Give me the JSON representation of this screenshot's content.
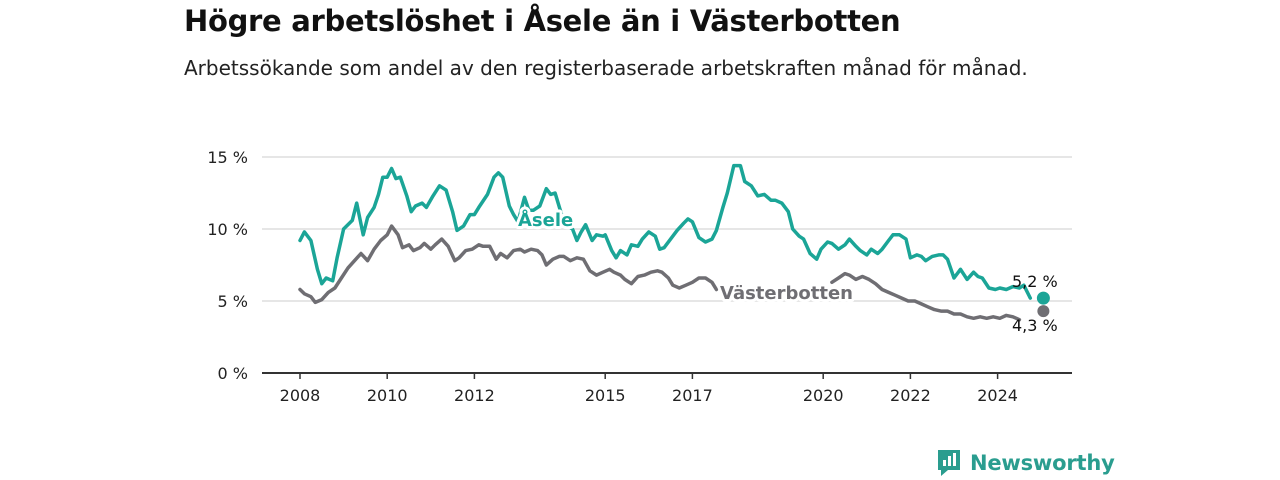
{
  "title": "Högre arbetslöshet i Åsele än i Västerbotten",
  "subtitle": "Arbetssökande som andel av den registerbaserade arbetskraften månad för månad.",
  "brand": "Newsworthy",
  "colors": {
    "asele": "#1ba597",
    "vasterbotten": "#6f6e73",
    "grid": "#dddddd",
    "axis": "#333333"
  },
  "chart_data": {
    "type": "line",
    "x_unit": "year",
    "y_unit": "%",
    "ylim": [
      0,
      15
    ],
    "xlim": [
      2007.7,
      2025.9
    ],
    "y_ticks": [
      0,
      5,
      10,
      15
    ],
    "y_tick_labels": [
      "0 %",
      "5 %",
      "10 %",
      "15 %"
    ],
    "x_ticks": [
      2008,
      2010,
      2012,
      2015,
      2017,
      2020,
      2022,
      2024
    ],
    "x_tick_labels": [
      "2008",
      "2010",
      "2012",
      "2015",
      "2017",
      "2020",
      "2022",
      "2024"
    ],
    "grid": true,
    "series": [
      {
        "name": "Åsele",
        "end_label": "5,2 %",
        "x": [
          2008.0,
          2008.1,
          2008.25,
          2008.4,
          2008.5,
          2008.6,
          2008.75,
          2008.85,
          2009.0,
          2009.2,
          2009.3,
          2009.45,
          2009.55,
          2009.7,
          2009.8,
          2009.9,
          2010.0,
          2010.1,
          2010.2,
          2010.3,
          2010.45,
          2010.55,
          2010.65,
          2010.8,
          2010.9,
          2011.05,
          2011.2,
          2011.35,
          2011.5,
          2011.6,
          2011.75,
          2011.9,
          2012.0,
          2012.1,
          2012.3,
          2012.45,
          2012.55,
          2012.65,
          2012.8,
          2012.9,
          2013.0,
          2013.15,
          2013.25,
          2013.35,
          2013.5,
          2013.65,
          2013.75,
          2013.85,
          2014.0,
          2014.1,
          2014.25,
          2014.35,
          2014.45,
          2014.55,
          2014.7,
          2014.8,
          2014.95,
          2015.0,
          2015.15,
          2015.25,
          2015.35,
          2015.5,
          2015.6,
          2015.75,
          2015.85,
          2016.0,
          2016.15,
          2016.25,
          2016.35,
          2016.5,
          2016.65,
          2016.8,
          2016.9,
          2017.0,
          2017.15,
          2017.3,
          2017.45,
          2017.55,
          2017.7,
          2017.8,
          2017.95,
          2018.1,
          2018.2,
          2018.35,
          2018.5,
          2018.65,
          2018.8,
          2018.9,
          2019.05,
          2019.2,
          2019.3,
          2019.45,
          2019.55,
          2019.7,
          2019.85,
          2019.95,
          2020.1,
          2020.2,
          2020.35,
          2020.5,
          2020.6,
          2020.75,
          2020.85,
          2021.0,
          2021.1,
          2021.25,
          2021.35,
          2021.5,
          2021.6,
          2021.75,
          2021.9,
          2022.0,
          2022.15,
          2022.25,
          2022.35,
          2022.5,
          2022.65,
          2022.75,
          2022.85,
          2023.0,
          2023.15,
          2023.3,
          2023.45,
          2023.55,
          2023.65,
          2023.8,
          2023.95,
          2024.05,
          2024.2,
          2024.35,
          2024.5,
          2024.6,
          2024.75
        ],
        "values": [
          9.2,
          9.8,
          9.2,
          7.2,
          6.2,
          6.6,
          6.4,
          8.0,
          10.0,
          10.6,
          11.8,
          9.6,
          10.8,
          11.5,
          12.4,
          13.6,
          13.6,
          14.2,
          13.5,
          13.6,
          12.3,
          11.2,
          11.6,
          11.8,
          11.5,
          12.3,
          13.0,
          12.7,
          11.2,
          9.9,
          10.2,
          11.0,
          11.0,
          11.5,
          12.4,
          13.6,
          13.9,
          13.6,
          11.6,
          11.0,
          10.5,
          12.2,
          11.3,
          11.3,
          11.6,
          12.8,
          12.4,
          12.5,
          11.0,
          10.3,
          10.0,
          9.2,
          9.8,
          10.3,
          9.2,
          9.6,
          9.5,
          9.6,
          8.5,
          8.0,
          8.5,
          8.2,
          8.9,
          8.8,
          9.3,
          9.8,
          9.5,
          8.6,
          8.7,
          9.3,
          9.9,
          10.4,
          10.7,
          10.5,
          9.4,
          9.1,
          9.3,
          9.9,
          11.5,
          12.5,
          14.4,
          14.4,
          13.3,
          13.0,
          12.3,
          12.4,
          12.0,
          12.0,
          11.8,
          11.2,
          10.0,
          9.5,
          9.3,
          8.3,
          7.9,
          8.6,
          9.1,
          9.0,
          8.6,
          8.9,
          9.3,
          8.8,
          8.5,
          8.2,
          8.6,
          8.3,
          8.6,
          9.2,
          9.6,
          9.6,
          9.3,
          8.0,
          8.2,
          8.1,
          7.8,
          8.1,
          8.2,
          8.2,
          7.9,
          6.6,
          7.2,
          6.5,
          7.0,
          6.7,
          6.6,
          5.9,
          5.8,
          5.9,
          5.8,
          6.0,
          5.9,
          6.1,
          5.2
        ],
        "final_point": [
          2025.05,
          5.2
        ]
      },
      {
        "name": "Västerbotten",
        "end_label": "4,3 %",
        "x": [
          2008.0,
          2008.1,
          2008.25,
          2008.35,
          2008.5,
          2008.65,
          2008.8,
          2008.95,
          2009.1,
          2009.25,
          2009.4,
          2009.55,
          2009.7,
          2009.85,
          2010.0,
          2010.1,
          2010.25,
          2010.35,
          2010.5,
          2010.6,
          2010.75,
          2010.85,
          2011.0,
          2011.1,
          2011.25,
          2011.4,
          2011.55,
          2011.65,
          2011.8,
          2011.95,
          2012.1,
          2012.2,
          2012.35,
          2012.5,
          2012.6,
          2012.75,
          2012.9,
          2013.05,
          2013.15,
          2013.3,
          2013.45,
          2013.55,
          2013.65,
          2013.8,
          2013.95,
          2014.05,
          2014.2,
          2014.35,
          2014.5,
          2014.65,
          2014.8,
          2014.95,
          2015.1,
          2015.2,
          2015.35,
          2015.45,
          2015.6,
          2015.75,
          2015.9,
          2016.05,
          2016.2,
          2016.3,
          2016.45,
          2016.55,
          2016.7,
          2016.85,
          2017.0,
          2017.15,
          2017.3,
          2017.45,
          2017.55
        ],
        "values": [
          5.8,
          5.5,
          5.3,
          4.9,
          5.1,
          5.6,
          5.9,
          6.6,
          7.3,
          7.8,
          8.3,
          7.8,
          8.6,
          9.2,
          9.6,
          10.2,
          9.6,
          8.7,
          8.9,
          8.5,
          8.7,
          9.0,
          8.6,
          8.9,
          9.3,
          8.8,
          7.8,
          8.0,
          8.5,
          8.6,
          8.9,
          8.8,
          8.8,
          7.9,
          8.3,
          8.0,
          8.5,
          8.6,
          8.4,
          8.6,
          8.5,
          8.2,
          7.5,
          7.9,
          8.1,
          8.1,
          7.8,
          8.0,
          7.9,
          7.1,
          6.8,
          7.0,
          7.2,
          7.0,
          6.8,
          6.5,
          6.2,
          6.7,
          6.8,
          7.0,
          7.1,
          7.0,
          6.6,
          6.1,
          5.9,
          6.1,
          6.3,
          6.6,
          6.6,
          6.3,
          5.8
        ],
        "x2": [
          2020.2,
          2020.35,
          2020.5,
          2020.6,
          2020.75,
          2020.9,
          2021.05,
          2021.2,
          2021.35,
          2021.5,
          2021.65,
          2021.8,
          2021.95,
          2022.1,
          2022.25,
          2022.4,
          2022.55,
          2022.7,
          2022.85,
          2023.0,
          2023.15,
          2023.3,
          2023.45,
          2023.6,
          2023.75,
          2023.9,
          2024.05,
          2024.2,
          2024.35,
          2024.5
        ],
        "values2": [
          6.3,
          6.6,
          6.9,
          6.8,
          6.5,
          6.7,
          6.5,
          6.2,
          5.8,
          5.6,
          5.4,
          5.2,
          5.0,
          5.0,
          4.8,
          4.6,
          4.4,
          4.3,
          4.3,
          4.1,
          4.1,
          3.9,
          3.8,
          3.9,
          3.8,
          3.9,
          3.8,
          4.0,
          3.9,
          3.7
        ],
        "final_point": [
          2025.05,
          4.3
        ]
      }
    ]
  }
}
